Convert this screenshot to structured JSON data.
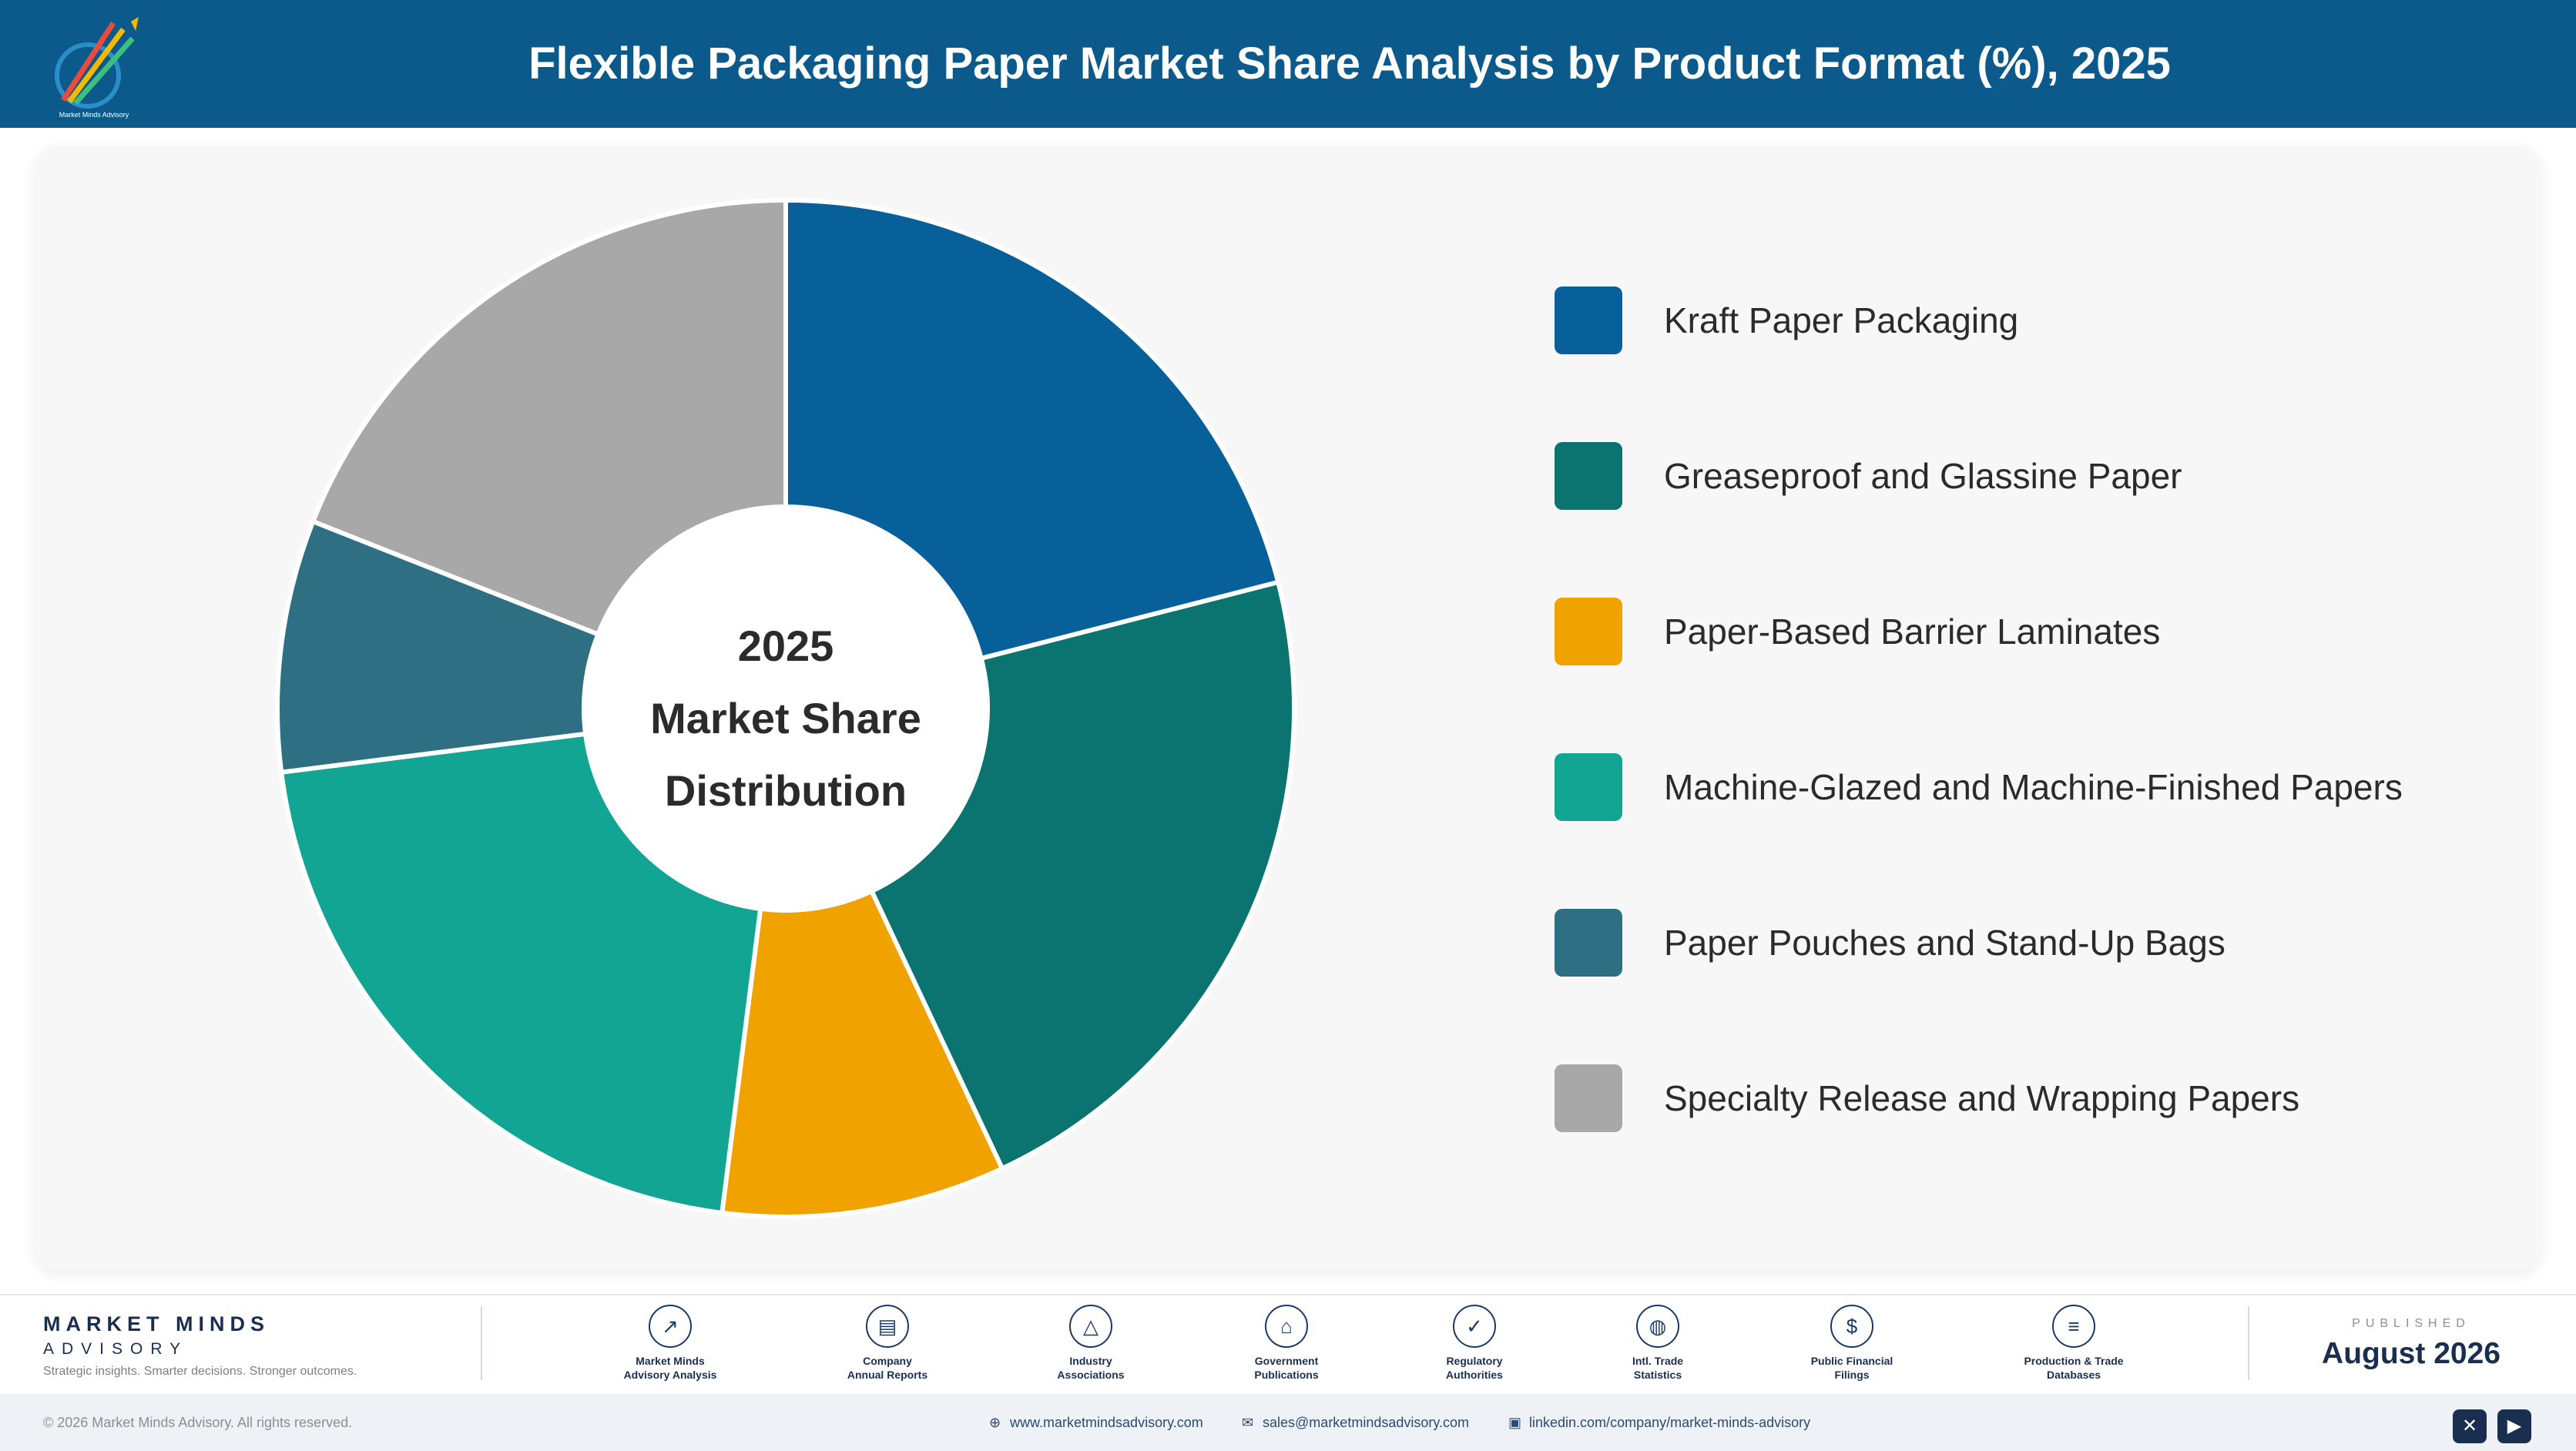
{
  "header": {
    "title": "Flexible Packaging Paper Market Share Analysis by Product Format (%), 2025"
  },
  "colors": {
    "header_bg": "#0b5a8b"
  },
  "chart_data": {
    "type": "pie",
    "donut": true,
    "center_text": [
      "2025",
      "Market Share",
      "Distribution"
    ],
    "legend_position": "right",
    "categories": [
      "Kraft Paper Packaging",
      "Greaseproof and Glassine Paper",
      "Paper-Based Barrier Laminates",
      "Machine-Glazed and Machine-Finished Papers",
      "Paper Pouches and Stand-Up Bags",
      "Specialty Release and Wrapping Papers"
    ],
    "values": [
      21,
      22,
      9,
      21,
      8,
      19
    ],
    "colors": [
      "#07609a",
      "#0b7370",
      "#f0a300",
      "#12a593",
      "#2f6f84",
      "#a8a8a8"
    ]
  },
  "footer": {
    "brand_name": "MARKET MINDS",
    "brand_sub": "ADVISORY",
    "tagline": "Strategic insights. Smarter decisions. Stronger outcomes.",
    "sources": [
      {
        "icon": "trend-line-icon",
        "line1": "Market Minds",
        "line2": "Advisory Analysis"
      },
      {
        "icon": "document-icon",
        "line1": "Company",
        "line2": "Annual Reports"
      },
      {
        "icon": "network-icon",
        "line1": "Industry",
        "line2": "Associations"
      },
      {
        "icon": "government-building-icon",
        "line1": "Government",
        "line2": "Publications"
      },
      {
        "icon": "shield-check-icon",
        "line1": "Regulatory",
        "line2": "Authorities"
      },
      {
        "icon": "globe-icon",
        "line1": "Intl. Trade",
        "line2": "Statistics"
      },
      {
        "icon": "dollar-coin-icon",
        "line1": "Public Financial",
        "line2": "Filings"
      },
      {
        "icon": "database-icon",
        "line1": "Production & Trade",
        "line2": "Databases"
      }
    ],
    "published_label": "PUBLISHED",
    "published_date": "August 2026",
    "copyright": "© 2026 Market Minds Advisory. All rights reserved.",
    "website": "www.marketmindsadvisory.com",
    "email": "sales@marketmindsadvisory.com",
    "linkedin": "linkedin.com/company/market-minds-advisory"
  }
}
